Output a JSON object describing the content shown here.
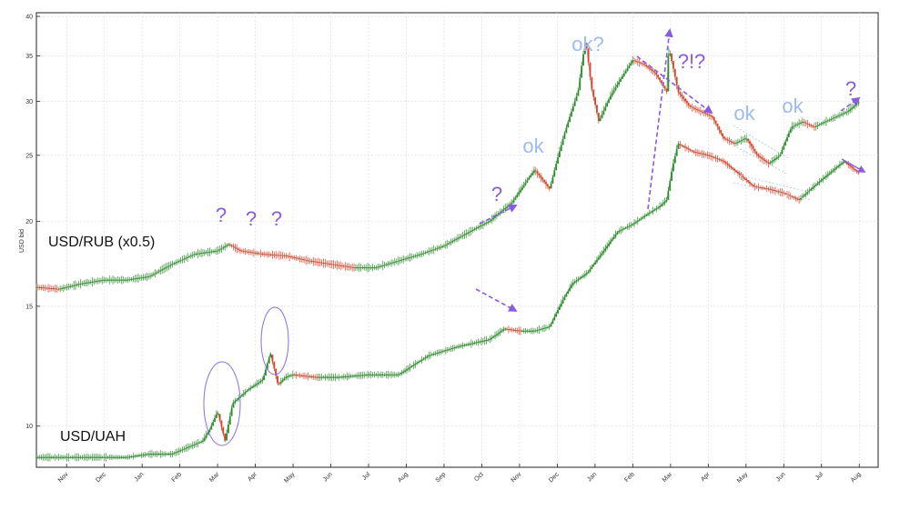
{
  "chart_data": {
    "type": "line",
    "title": "",
    "xlabel": "",
    "ylabel": "USD bid",
    "yscale": "log",
    "ylim": [
      8.7,
      40.5
    ],
    "y_ticks": [
      10,
      15,
      20,
      25,
      30,
      35,
      40
    ],
    "xlim": [
      0,
      22.3
    ],
    "x_ticks": [
      {
        "label": "Nov",
        "pos": 0.8
      },
      {
        "label": "Dec",
        "pos": 1.8
      },
      {
        "label": "Jan",
        "pos": 2.8
      },
      {
        "label": "Feb",
        "pos": 3.8
      },
      {
        "label": "Mar",
        "pos": 4.8
      },
      {
        "label": "Apr",
        "pos": 5.8
      },
      {
        "label": "May",
        "pos": 6.8
      },
      {
        "label": "Jun",
        "pos": 7.8
      },
      {
        "label": "Jul",
        "pos": 8.8
      },
      {
        "label": "Aug",
        "pos": 9.8
      },
      {
        "label": "Sep",
        "pos": 10.8
      },
      {
        "label": "Oct",
        "pos": 11.8
      },
      {
        "label": "Nov",
        "pos": 12.8
      },
      {
        "label": "Dec",
        "pos": 13.8
      },
      {
        "label": "Jan",
        "pos": 14.8
      },
      {
        "label": "Feb",
        "pos": 15.8
      },
      {
        "label": "Mar",
        "pos": 16.8
      },
      {
        "label": "Apr",
        "pos": 17.8
      },
      {
        "label": "May",
        "pos": 18.8
      },
      {
        "label": "Jun",
        "pos": 19.8
      },
      {
        "label": "Jul",
        "pos": 20.8
      },
      {
        "label": "Aug",
        "pos": 21.8
      }
    ],
    "grid": true,
    "series": [
      {
        "name": "USD/RUB (x0.5)",
        "color": "#2e8b57",
        "x": [
          0,
          0.6,
          1.2,
          1.8,
          2.4,
          3.0,
          3.6,
          4.2,
          4.8,
          5.1,
          5.4,
          6.0,
          6.6,
          7.2,
          7.8,
          8.4,
          9.0,
          9.6,
          10.2,
          10.8,
          11.4,
          12.0,
          12.6,
          13.2,
          13.6,
          14.0,
          14.35,
          14.55,
          14.7,
          14.9,
          15.2,
          15.5,
          15.8,
          16.1,
          16.4,
          16.7,
          16.75,
          17.0,
          17.3,
          17.6,
          17.9,
          18.2,
          18.5,
          18.8,
          19.1,
          19.4,
          19.7,
          20.0,
          20.3,
          20.6,
          20.9,
          21.2,
          21.5,
          21.8
        ],
        "values": [
          16.0,
          15.9,
          16.2,
          16.4,
          16.4,
          16.6,
          17.3,
          17.9,
          18.1,
          18.5,
          18.1,
          17.9,
          17.8,
          17.5,
          17.3,
          17.1,
          17.1,
          17.5,
          17.9,
          18.4,
          19.2,
          20.0,
          21.3,
          23.8,
          22.3,
          27.0,
          31.0,
          37.0,
          31.5,
          28.0,
          30.5,
          32.5,
          34.5,
          34.0,
          33.0,
          31.0,
          36.0,
          31.0,
          29.5,
          29.0,
          28.5,
          26.5,
          26.0,
          26.5,
          25.0,
          24.3,
          25.0,
          27.5,
          28.0,
          27.5,
          28.0,
          28.5,
          29.0,
          30.0
        ]
      },
      {
        "name": "USD/UAH",
        "color": "#1a7a1a",
        "x": [
          0,
          0.6,
          1.2,
          1.8,
          2.4,
          3.0,
          3.6,
          4.0,
          4.4,
          4.6,
          4.8,
          5.0,
          5.2,
          5.6,
          6.0,
          6.2,
          6.4,
          6.6,
          6.8,
          7.4,
          8.0,
          8.8,
          9.6,
          10.4,
          11.2,
          12.0,
          12.4,
          12.8,
          13.2,
          13.6,
          14.0,
          14.2,
          14.4,
          14.6,
          15.0,
          15.4,
          15.8,
          16.2,
          16.5,
          16.7,
          16.85,
          17.0,
          17.4,
          17.8,
          18.2,
          18.6,
          19.0,
          19.4,
          19.8,
          20.2,
          20.6,
          21.0,
          21.4,
          21.8
        ],
        "values": [
          9.0,
          9.0,
          9.0,
          9.0,
          9.0,
          9.1,
          9.1,
          9.3,
          9.5,
          9.9,
          10.5,
          9.5,
          10.8,
          11.3,
          11.7,
          12.8,
          11.5,
          11.8,
          11.9,
          11.8,
          11.8,
          11.9,
          11.9,
          12.7,
          13.1,
          13.4,
          13.9,
          13.8,
          13.8,
          14.0,
          15.5,
          16.2,
          16.5,
          16.8,
          18.0,
          19.3,
          19.8,
          20.5,
          21.0,
          21.5,
          24.0,
          26.0,
          25.3,
          25.0,
          24.5,
          23.5,
          22.5,
          22.3,
          22.0,
          21.5,
          22.5,
          23.5,
          24.5,
          23.5
        ]
      }
    ],
    "annotations": {
      "question_marks": [
        "?",
        "?",
        "?",
        "?",
        "?",
        "?"
      ],
      "combo": "?!?",
      "ok_labels": [
        "ok",
        "ok?",
        "ok",
        "ok"
      ]
    },
    "legend": "none"
  },
  "colors": {
    "up": "#2e8b2e",
    "down": "#e0402a",
    "annotation_q": "#8a5be0",
    "annotation_ok": "#9bbcf0",
    "ellipse": "#8a6be8",
    "arrow": "#8a5be0",
    "channel": "#b9ccf2"
  }
}
